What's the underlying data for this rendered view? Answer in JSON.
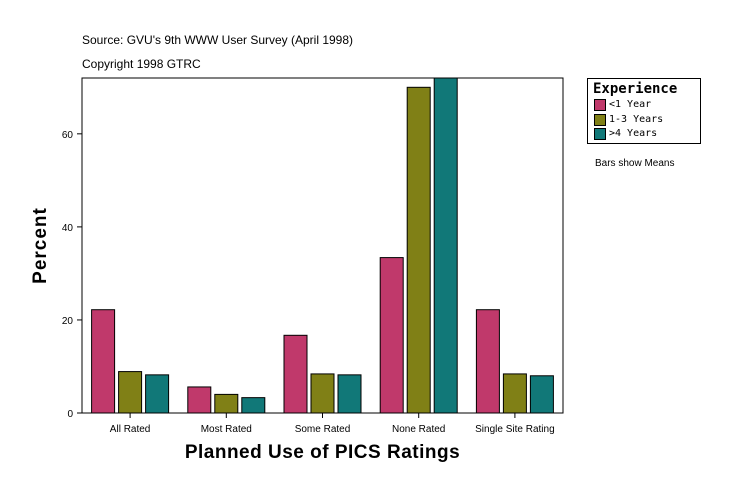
{
  "header": {
    "source": "Source: GVU's 9th WWW User Survey (April 1998)",
    "copyright": "Copyright 1998 GTRC"
  },
  "note": "Bars show Means",
  "colors": {
    "less_1": "#c0396b",
    "one_three": "#808016",
    "more_4": "#117878"
  },
  "chart_data": {
    "type": "bar",
    "title": "",
    "xlabel": "Planned Use of PICS Ratings",
    "ylabel": "Percent",
    "ylim": [
      0,
      72
    ],
    "yticks": [
      0,
      20,
      40,
      60
    ],
    "categories": [
      "All Rated",
      "Most Rated",
      "Some Rated",
      "None Rated",
      "Single Site Rating"
    ],
    "legend_title": "Experience",
    "legend_position": "top-right",
    "series": [
      {
        "name": "<1 Year",
        "values": [
          22.2,
          5.6,
          16.7,
          33.4,
          22.2
        ]
      },
      {
        "name": "1-3 Years",
        "values": [
          8.9,
          4.0,
          8.4,
          70.0,
          8.4
        ]
      },
      {
        "name": ">4 Years",
        "values": [
          8.2,
          3.3,
          8.2,
          72.0,
          8.0
        ]
      }
    ]
  }
}
